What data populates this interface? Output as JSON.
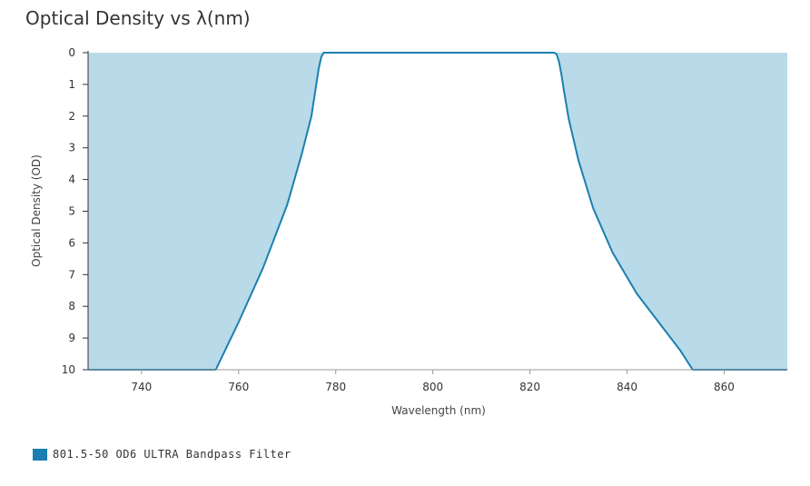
{
  "chart_data": {
    "type": "area",
    "title": "Optical Density vs λ(nm)",
    "xlabel": "Wavelength (nm)",
    "ylabel": "Optical Density (OD)",
    "xlim": [
      729,
      873
    ],
    "ylim": [
      0,
      10
    ],
    "y_inverted": true,
    "x_ticks": [
      "740",
      "760",
      "780",
      "800",
      "820",
      "840",
      "860"
    ],
    "y_ticks": [
      "0",
      "1",
      "2",
      "3",
      "4",
      "5",
      "6",
      "7",
      "8",
      "9",
      "10"
    ],
    "grid": false,
    "legend_position": "bottom-left",
    "colors": {
      "fill": "#b9dae8",
      "line": "#1b7fb0",
      "axis": "#333333"
    },
    "series": [
      {
        "name": "801.5-50 OD6 ULTRA Bandpass Filter",
        "x": [
          729,
          755.3,
          760,
          765,
          770,
          773,
          775,
          776,
          776.5,
          777,
          777.5,
          778,
          825,
          825.5,
          826,
          826.5,
          827,
          828,
          830,
          833,
          837,
          842,
          847,
          851,
          853.5,
          873
        ],
        "y": [
          10,
          10,
          8.5,
          6.8,
          4.8,
          3.2,
          2.0,
          1.0,
          0.5,
          0.15,
          0,
          0,
          0,
          0.05,
          0.3,
          0.7,
          1.2,
          2.1,
          3.4,
          4.9,
          6.3,
          7.6,
          8.6,
          9.4,
          10,
          10
        ]
      }
    ]
  }
}
